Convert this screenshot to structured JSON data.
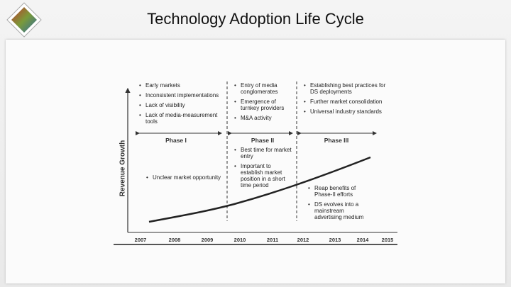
{
  "title": "Technology Adoption Life Cycle",
  "y_axis_label": "Revenue Growth",
  "years": [
    "2007",
    "2008",
    "2009",
    "2010",
    "2011",
    "2012",
    "2013",
    "2014",
    "2015"
  ],
  "phases": [
    {
      "label": "Phase I",
      "top_bullets": [
        "Early markets",
        "Inconsistent implementations",
        "Lack of visibility",
        "Lack of media-measurement tools"
      ],
      "bottom_bullets": [
        "Unclear market opportunity"
      ]
    },
    {
      "label": "Phase II",
      "top_bullets": [
        "Entry of media conglomerates",
        "Emergence of turnkey providers",
        "M&A activity"
      ],
      "bottom_bullets": [
        "Best time for market entry",
        "Important to establish market position in a short time period"
      ]
    },
    {
      "label": "Phase III",
      "top_bullets": [
        "Establishing best practices for DS deployments",
        "Further market consolidation",
        "Universal industry standards"
      ],
      "bottom_bullets": [
        "Reap benefits of Phase-II efforts",
        "DS evolves into a mainstream advertising medium"
      ]
    }
  ]
}
